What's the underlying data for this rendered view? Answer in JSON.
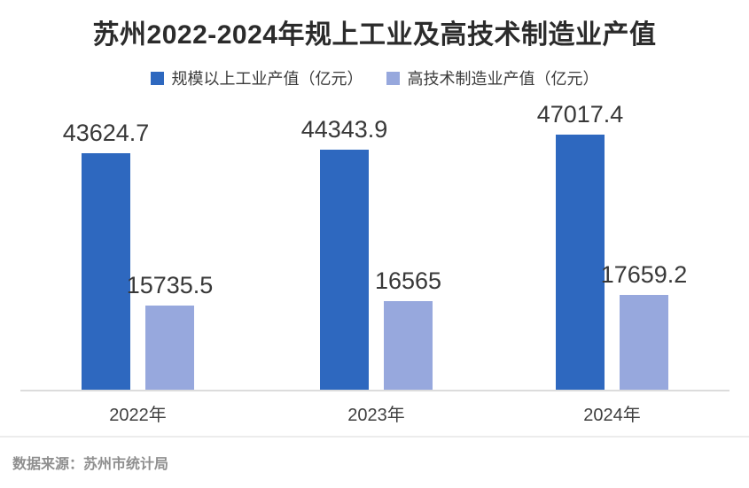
{
  "title": "苏州2022-2024年规上工业及高技术制造业产值",
  "source": "数据来源：苏州市统计局",
  "colors": {
    "industrial": "#2e68bf",
    "hightech": "#97a8dd",
    "axis_line": "#dcdcdc",
    "divider": "#ececec"
  },
  "legend": {
    "items": [
      {
        "key": "industrial",
        "label": "规模以上工业产值（亿元）",
        "color": "#2e68bf"
      },
      {
        "key": "hightech",
        "label": "高技术制造业产值（亿元）",
        "color": "#97a8dd"
      }
    ]
  },
  "chart_data": {
    "type": "bar",
    "title": "苏州2022-2024年规上工业及高技术制造业产值",
    "categories": [
      "2022年",
      "2023年",
      "2024年"
    ],
    "series": [
      {
        "key": "industrial",
        "name": "规模以上工业产值（亿元）",
        "color": "#2e68bf",
        "values": [
          43624.7,
          44343.9,
          47017.4
        ]
      },
      {
        "key": "hightech",
        "name": "高技术制造业产值（亿元）",
        "color": "#97a8dd",
        "values": [
          15735.5,
          16565,
          17659.2
        ]
      }
    ],
    "unit": "亿元",
    "ylim": [
      0,
      50000
    ],
    "grid": false,
    "value_labels": true,
    "legend_position": "top",
    "xlabel": "",
    "ylabel": ""
  }
}
